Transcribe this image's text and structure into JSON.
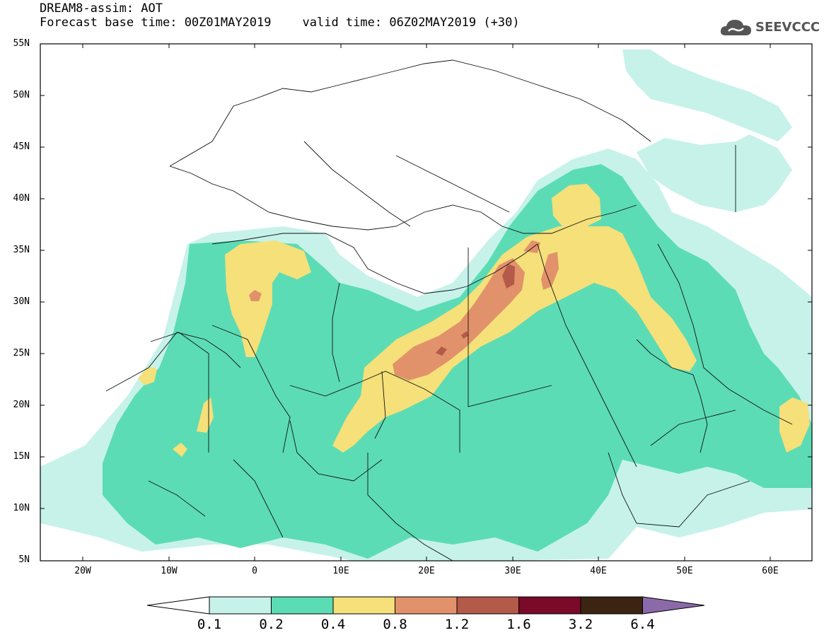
{
  "header": {
    "title": "DREAM8-assim: AOT",
    "base_time": "Forecast base time: 00Z01MAY2019",
    "valid_time": "valid time: 06Z02MAY2019 (+30)"
  },
  "logo": {
    "text": "SEEVCCC",
    "icon": "cloud-icon"
  },
  "map": {
    "lat_labels": [
      "55N",
      "50N",
      "45N",
      "40N",
      "35N",
      "30N",
      "25N",
      "20N",
      "15N",
      "10N",
      "5N"
    ],
    "lon_labels": [
      "20W",
      "10W",
      "0",
      "10E",
      "20E",
      "30E",
      "40E",
      "50E",
      "60E"
    ]
  },
  "colorbar": {
    "labels": [
      "0.1",
      "0.2",
      "0.4",
      "0.8",
      "1.2",
      "1.6",
      "3.2",
      "6.4"
    ],
    "colors": [
      "#c6f2ea",
      "#5cdcb4",
      "#f5e07a",
      "#e2926a",
      "#b35a4a",
      "#7a0a2a",
      "#3b2412",
      "#8a6aa8"
    ]
  }
}
